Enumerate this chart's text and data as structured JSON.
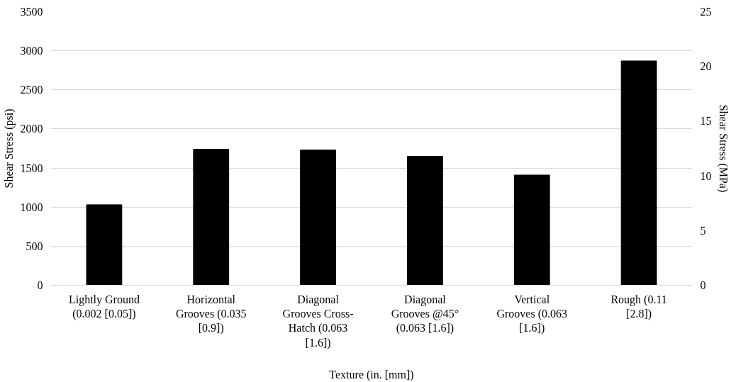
{
  "chart_data": {
    "type": "bar",
    "xlabel": "Texture (in. [mm])",
    "ylabel": "Shear Stress (psi)",
    "y2label": "Shear Stress (MPa)",
    "categories": [
      "Lightly Ground (0.002 [0.05])",
      "Horizontal Grooves (0.035 [0.9])",
      "Diagonal Grooves Cross-Hatch (0.063 [1.6])",
      "Diagonal Grooves @45° (0.063 [1.6])",
      "Vertical Grooves (0.063 [1.6])",
      "Rough (0.11 [2.8])"
    ],
    "series": [
      {
        "color": "#000000",
        "values": [
          1030,
          1740,
          1730,
          1650,
          1410,
          2870
        ]
      }
    ],
    "ylim": [
      0,
      3500
    ],
    "yticks": [
      0,
      500,
      1000,
      1500,
      2000,
      2500,
      3000,
      3500
    ],
    "y2lim": [
      0,
      25
    ],
    "y2ticks": [
      0,
      5,
      10,
      15,
      20,
      25
    ],
    "grid": "y"
  }
}
